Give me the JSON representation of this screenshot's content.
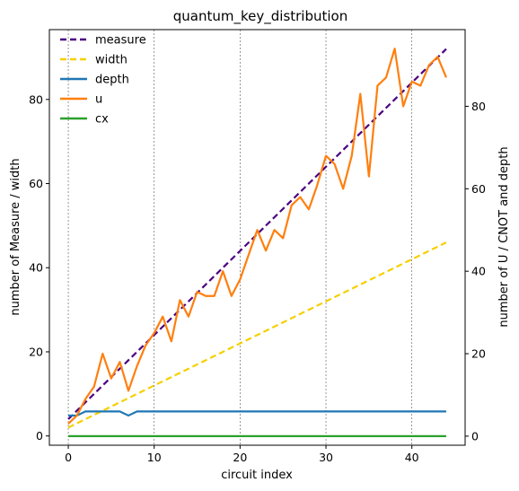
{
  "chart_data": {
    "type": "line",
    "title": "quantum_key_distribution",
    "xlabel": "circuit index",
    "ylabel_left": "number of Measure / width",
    "ylabel_right": "number of U / CNOT and depth",
    "xlim": [
      -2.2,
      46.2
    ],
    "ylim_left": [
      -2.2,
      96.6
    ],
    "ylim_right": [
      -2.2,
      98.6
    ],
    "x_ticks": [
      "0",
      "10",
      "20",
      "30",
      "40"
    ],
    "y_left_ticks": [
      "0",
      "20",
      "40",
      "60",
      "80"
    ],
    "y_right_ticks": [
      "0",
      "20",
      "40",
      "60",
      "80"
    ],
    "grid": "vertical dashed at x ticks",
    "legend_position": "upper-left",
    "x": [
      0,
      1,
      2,
      3,
      4,
      5,
      6,
      7,
      8,
      9,
      10,
      11,
      12,
      13,
      14,
      15,
      16,
      17,
      18,
      19,
      20,
      21,
      22,
      23,
      24,
      25,
      26,
      27,
      28,
      29,
      30,
      31,
      32,
      33,
      34,
      35,
      36,
      37,
      38,
      39,
      40,
      41,
      42,
      43,
      44
    ],
    "series": [
      {
        "name": "measure",
        "axis": "left",
        "color": "#4b0082",
        "style": "dashed",
        "values": [
          4,
          6,
          8,
          10,
          12,
          14,
          16,
          18,
          20,
          22,
          24,
          26,
          28,
          30,
          32,
          34,
          36,
          38,
          40,
          42,
          44,
          46,
          48,
          50,
          52,
          54,
          56,
          58,
          60,
          62,
          64,
          66,
          68,
          70,
          72,
          74,
          76,
          78,
          80,
          82,
          84,
          86,
          88,
          90,
          92
        ]
      },
      {
        "name": "width",
        "axis": "left",
        "color": "#f5d000",
        "style": "dashed",
        "values": [
          2,
          3,
          4,
          5,
          6,
          7,
          8,
          9,
          10,
          11,
          12,
          13,
          14,
          15,
          16,
          17,
          18,
          19,
          20,
          21,
          22,
          23,
          24,
          25,
          26,
          27,
          28,
          29,
          30,
          31,
          32,
          33,
          34,
          35,
          36,
          37,
          38,
          39,
          40,
          41,
          42,
          43,
          44,
          45,
          46
        ]
      },
      {
        "name": "depth",
        "axis": "right",
        "color": "#1f77b4",
        "style": "solid",
        "values": [
          5,
          5,
          6,
          6,
          6,
          6,
          6,
          5,
          6,
          6,
          6,
          6,
          6,
          6,
          6,
          6,
          6,
          6,
          6,
          6,
          6,
          6,
          6,
          6,
          6,
          6,
          6,
          6,
          6,
          6,
          6,
          6,
          6,
          6,
          6,
          6,
          6,
          6,
          6,
          6,
          6,
          6,
          6,
          6,
          6
        ]
      },
      {
        "name": "u",
        "axis": "right",
        "color": "#ff7f0e",
        "style": "solid",
        "values": [
          3,
          5,
          9,
          12,
          20,
          14,
          18,
          11,
          17,
          22,
          25,
          29,
          23,
          33,
          29,
          35,
          34,
          34,
          40,
          34,
          38,
          44,
          50,
          45,
          50,
          48,
          56,
          58,
          55,
          61,
          68,
          66,
          60,
          68,
          83,
          63,
          85,
          87,
          94,
          80,
          86,
          85,
          90,
          92,
          87
        ]
      },
      {
        "name": "cx",
        "axis": "right",
        "color": "#2ca02c",
        "style": "solid",
        "values": [
          0,
          0,
          0,
          0,
          0,
          0,
          0,
          0,
          0,
          0,
          0,
          0,
          0,
          0,
          0,
          0,
          0,
          0,
          0,
          0,
          0,
          0,
          0,
          0,
          0,
          0,
          0,
          0,
          0,
          0,
          0,
          0,
          0,
          0,
          0,
          0,
          0,
          0,
          0,
          0,
          0,
          0,
          0,
          0,
          0
        ]
      }
    ]
  }
}
